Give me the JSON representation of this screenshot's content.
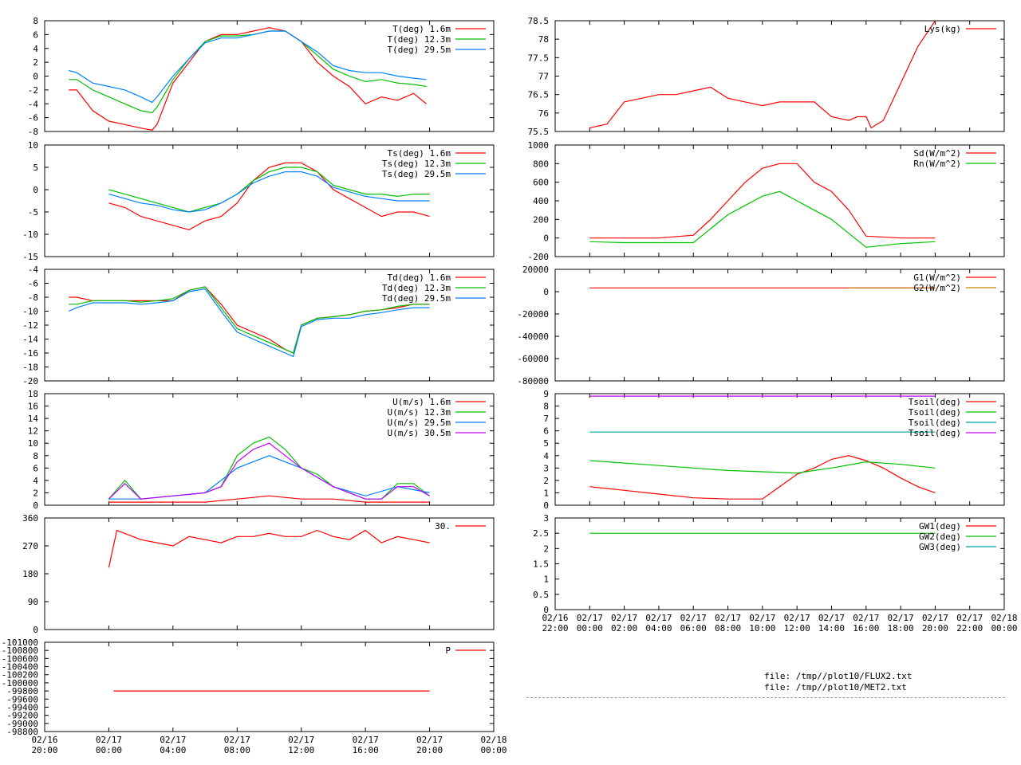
{
  "colors": {
    "red": "#ff0000",
    "green": "#00c000",
    "blue": "#0080ff",
    "magenta": "#c000ff",
    "darkyellow": "#c08000",
    "teal": "#00a0a0",
    "grid": "#a0a0a0"
  },
  "files": [
    "file: /tmp//plot10/FLUX2.txt",
    "file: /tmp//plot10/MET2.txt"
  ],
  "chart_data": [
    {
      "type": "line",
      "yticks": [
        "8",
        "6",
        "4",
        "2",
        "0",
        "-2",
        "-4",
        "-6",
        "-8"
      ],
      "ylim": [
        -8,
        8
      ],
      "series": [
        {
          "name": "T(deg)  1.6m",
          "color": "red",
          "x": [
            1.5,
            2,
            3,
            4,
            5,
            6,
            6.7,
            7,
            8,
            9,
            10,
            11,
            12,
            13,
            14,
            15,
            16,
            17,
            18,
            19,
            20,
            21,
            22,
            23,
            23.8
          ],
          "y": [
            -2,
            -2,
            -5,
            -6.5,
            -7,
            -7.5,
            -7.8,
            -7,
            -1,
            2,
            5,
            6,
            6,
            6.5,
            7,
            6.5,
            5,
            2,
            0,
            -1.5,
            -4,
            -3,
            -3.5,
            -2.5,
            -4
          ]
        },
        {
          "name": "T(deg) 12.3m",
          "color": "green",
          "x": [
            1.5,
            2,
            3,
            4,
            5,
            6,
            6.7,
            7,
            8,
            9,
            10,
            11,
            12,
            13,
            14,
            15,
            16,
            17,
            18,
            19,
            20,
            21,
            22,
            23,
            23.8
          ],
          "y": [
            -0.5,
            -0.5,
            -2,
            -3,
            -4,
            -5,
            -5.3,
            -4.5,
            -0.5,
            2.5,
            5,
            5.8,
            5.8,
            6,
            6.5,
            6.5,
            5,
            3,
            1,
            0,
            -0.8,
            -0.5,
            -1,
            -1.2,
            -1.5
          ]
        },
        {
          "name": "T(deg) 29.5m",
          "color": "blue",
          "x": [
            1.5,
            2,
            3,
            4,
            5,
            6,
            6.7,
            7,
            8,
            9,
            10,
            11,
            12,
            13,
            14,
            15,
            16,
            17,
            18,
            19,
            20,
            21,
            22,
            23,
            23.8
          ],
          "y": [
            0.8,
            0.5,
            -1,
            -1.5,
            -2,
            -3,
            -3.8,
            -3,
            0,
            2.5,
            4.8,
            5.5,
            5.5,
            6,
            6.5,
            6.5,
            5,
            3.5,
            1.5,
            0.8,
            0.5,
            0.5,
            0,
            -0.3,
            -0.5
          ]
        }
      ]
    },
    {
      "type": "line",
      "yticks": [
        "10",
        "5",
        "0",
        "-5",
        "-10",
        "-15"
      ],
      "ylim": [
        -15,
        10
      ],
      "series": [
        {
          "name": "Ts(deg)  1.6m",
          "color": "red",
          "x": [
            4,
            5,
            6,
            7,
            8,
            9,
            10,
            11,
            12,
            13,
            14,
            15,
            16,
            17,
            18,
            19,
            20,
            21,
            22,
            23,
            24
          ],
          "y": [
            -3,
            -4,
            -6,
            -7,
            -8,
            -9,
            -7,
            -6,
            -3,
            2,
            5,
            6,
            6,
            4,
            0,
            -2,
            -4,
            -6,
            -5,
            -5,
            -6
          ]
        },
        {
          "name": "Ts(deg) 12.3m",
          "color": "green",
          "x": [
            4,
            5,
            6,
            7,
            8,
            9,
            10,
            11,
            12,
            13,
            14,
            15,
            16,
            17,
            18,
            19,
            20,
            21,
            22,
            23,
            24
          ],
          "y": [
            0,
            -1,
            -2,
            -3,
            -4,
            -5,
            -4,
            -3,
            -1,
            2,
            4,
            5,
            5,
            4,
            1,
            0,
            -1,
            -1,
            -1.5,
            -1,
            -1
          ]
        },
        {
          "name": "Ts(deg) 29.5m",
          "color": "blue",
          "x": [
            4,
            5,
            6,
            7,
            8,
            9,
            10,
            11,
            12,
            13,
            14,
            15,
            16,
            17,
            18,
            19,
            20,
            21,
            22,
            23,
            24
          ],
          "y": [
            -1,
            -2,
            -3,
            -3.5,
            -4.5,
            -5,
            -4.5,
            -3,
            -1,
            1.5,
            3,
            4,
            4,
            3,
            0.5,
            -0.5,
            -1.5,
            -2,
            -2.5,
            -2.5,
            -2.5
          ]
        }
      ]
    },
    {
      "type": "line",
      "yticks": [
        "-4",
        "-6",
        "-8",
        "-10",
        "-12",
        "-14",
        "-16",
        "-18",
        "-20"
      ],
      "ylim": [
        -20,
        -4
      ],
      "series": [
        {
          "name": "Td(deg)  1.6m",
          "color": "red",
          "x": [
            1.5,
            2,
            3,
            4,
            5,
            6,
            7,
            8,
            9,
            10,
            11,
            12,
            13,
            14,
            15,
            15.5,
            16,
            17,
            18,
            19,
            20,
            21,
            22,
            23,
            24
          ],
          "y": [
            -8,
            -8,
            -8.5,
            -8.5,
            -8.5,
            -8.5,
            -8.5,
            -8.5,
            -7,
            -6.5,
            -9,
            -12,
            -13,
            -14,
            -15.5,
            -16,
            -12,
            -11,
            -10.8,
            -10.5,
            -10,
            -9.8,
            -9.5,
            -9,
            -9
          ]
        },
        {
          "name": "Td(deg) 12.3m",
          "color": "green",
          "x": [
            1.5,
            2,
            3,
            4,
            5,
            6,
            7,
            8,
            9,
            10,
            11,
            12,
            13,
            14,
            15,
            15.5,
            16,
            17,
            18,
            19,
            20,
            21,
            22,
            23,
            24
          ],
          "y": [
            -9,
            -9,
            -8.5,
            -8.5,
            -8.5,
            -8.7,
            -8.5,
            -8.2,
            -7,
            -6.5,
            -9.5,
            -12.5,
            -13.5,
            -14.5,
            -15.5,
            -16,
            -12,
            -11,
            -10.8,
            -10.5,
            -10,
            -9.8,
            -9.3,
            -9,
            -9
          ]
        },
        {
          "name": "Td(deg) 29.5m",
          "color": "blue",
          "x": [
            1.5,
            2,
            3,
            4,
            5,
            6,
            7,
            8,
            9,
            10,
            11,
            12,
            13,
            14,
            15,
            15.5,
            16,
            17,
            18,
            19,
            20,
            21,
            22,
            23,
            24
          ],
          "y": [
            -10,
            -9.5,
            -8.8,
            -8.8,
            -8.8,
            -9,
            -8.8,
            -8.5,
            -7.2,
            -6.8,
            -10,
            -13,
            -14,
            -15,
            -16,
            -16.5,
            -12.2,
            -11.2,
            -11,
            -11,
            -10.5,
            -10.2,
            -9.8,
            -9.5,
            -9.5
          ]
        }
      ]
    },
    {
      "type": "line",
      "yticks": [
        "18",
        "16",
        "14",
        "12",
        "10",
        "8",
        "6",
        "4",
        "2",
        "0"
      ],
      "ylim": [
        0,
        18
      ],
      "series": [
        {
          "name": "U(m/s)  1.6m",
          "color": "red",
          "x": [
            4,
            6,
            8,
            10,
            12,
            14,
            16,
            18,
            20,
            22,
            24
          ],
          "y": [
            0.5,
            0.5,
            0.5,
            0.5,
            1,
            1.5,
            1,
            1,
            0.5,
            0.5,
            0.5
          ]
        },
        {
          "name": "U(m/s) 12.3m",
          "color": "green",
          "x": [
            4,
            5,
            6,
            8,
            10,
            11,
            12,
            13,
            14,
            15,
            16,
            17,
            18,
            19,
            20,
            21,
            22,
            23,
            24
          ],
          "y": [
            1,
            4,
            1,
            1.5,
            2,
            3,
            8,
            10,
            11,
            9,
            6,
            5,
            3,
            2,
            1,
            1,
            3.5,
            3.5,
            1.5
          ]
        },
        {
          "name": "U(m/s) 29.5m",
          "color": "blue",
          "x": [
            4,
            6,
            8,
            10,
            12,
            14,
            16,
            18,
            20,
            22,
            24
          ],
          "y": [
            1,
            1,
            1.5,
            2,
            6,
            8,
            6,
            3,
            1.5,
            3,
            2
          ]
        },
        {
          "name": "U(m/s) 30.5m",
          "color": "magenta",
          "x": [
            4,
            5,
            6,
            8,
            10,
            11,
            12,
            13,
            14,
            15,
            16,
            17,
            18,
            19,
            20,
            21,
            22,
            23,
            24
          ],
          "y": [
            1,
            3.5,
            1,
            1.5,
            2,
            3,
            7,
            9,
            10,
            8,
            6,
            4.5,
            3,
            2,
            1,
            1,
            3,
            3,
            1.5
          ]
        }
      ]
    },
    {
      "type": "line",
      "yticks": [
        "360",
        "270",
        "180",
        "90",
        "0"
      ],
      "ylim": [
        0,
        360
      ],
      "series": [
        {
          "name": "30.",
          "color": "red",
          "x": [
            4,
            4.5,
            5,
            6,
            7,
            8,
            9,
            10,
            11,
            12,
            13,
            14,
            15,
            16,
            17,
            18,
            19,
            20,
            21,
            22,
            23,
            24
          ],
          "y": [
            200,
            320,
            310,
            290,
            280,
            270,
            300,
            290,
            280,
            300,
            300,
            310,
            300,
            300,
            320,
            300,
            290,
            320,
            280,
            300,
            290,
            280
          ]
        }
      ]
    },
    {
      "type": "line",
      "yticks": [
        "-101000",
        "-100800",
        "-100600",
        "-100400",
        "-100200",
        "-100000",
        "-99800",
        "-99600",
        "-99400",
        "-99200",
        "-99000",
        "-98800"
      ],
      "ylim": [
        -101000,
        -98800
      ],
      "xticks": [
        "02/16|20:00",
        "02/17|00:00",
        "02/17|04:00",
        "02/17|08:00",
        "02/17|12:00",
        "02/17|16:00",
        "02/17|20:00",
        "02/18|00:00"
      ],
      "series": [
        {
          "name": "P",
          "color": "red",
          "x": [
            4.3,
            24
          ],
          "y": [
            -100000,
            -100000
          ]
        }
      ]
    },
    {
      "type": "line",
      "yticks": [
        "78.5",
        "78",
        "77.5",
        "77",
        "76.5",
        "76",
        "75.5"
      ],
      "ylim": [
        75.5,
        78.5
      ],
      "series": [
        {
          "name": "Lys(kg)",
          "color": "red",
          "x": [
            4,
            5,
            6,
            7,
            8,
            9,
            10,
            11,
            12,
            13,
            14,
            15,
            16,
            17,
            18,
            19,
            19.5,
            20,
            20.3,
            21,
            22,
            23,
            24
          ],
          "y": [
            75.6,
            75.7,
            76.3,
            76.4,
            76.5,
            76.5,
            76.6,
            76.7,
            76.4,
            76.3,
            76.2,
            76.3,
            76.3,
            76.3,
            75.9,
            75.8,
            75.9,
            75.9,
            75.6,
            75.8,
            76.8,
            77.8,
            78.5
          ]
        }
      ]
    },
    {
      "type": "line",
      "yticks": [
        "1000",
        "800",
        "600",
        "400",
        "200",
        "0",
        "-200"
      ],
      "ylim": [
        -200,
        1000
      ],
      "series": [
        {
          "name": "Sd(W/m^2)",
          "color": "red",
          "x": [
            4,
            6,
            8,
            10,
            11,
            12,
            13,
            14,
            15,
            16,
            17,
            18,
            19,
            20,
            22,
            24
          ],
          "y": [
            0,
            0,
            0,
            30,
            200,
            400,
            600,
            750,
            800,
            800,
            600,
            500,
            300,
            20,
            0,
            0
          ]
        },
        {
          "name": "Rn(W/m^2)",
          "color": "green",
          "x": [
            4,
            6,
            8,
            10,
            11,
            12,
            13,
            14,
            15,
            16,
            17,
            18,
            19,
            20,
            22,
            24
          ],
          "y": [
            -40,
            -50,
            -50,
            -50,
            100,
            250,
            350,
            450,
            500,
            400,
            300,
            200,
            50,
            -100,
            -60,
            -40
          ]
        }
      ]
    },
    {
      "type": "line",
      "yticks": [
        "20000",
        "0",
        "-20000",
        "-40000",
        "-60000",
        "-80000"
      ],
      "ylim": [
        -100000,
        20000
      ],
      "series": [
        {
          "name": "G1(W/m^2)",
          "color": "red",
          "x": [
            4,
            24
          ],
          "y": [
            0,
            0
          ]
        },
        {
          "name": "G2(W/m^2)",
          "color": "darkyellow",
          "x": [
            19,
            24
          ],
          "y": [
            0,
            0
          ]
        }
      ]
    },
    {
      "type": "line",
      "yticks": [
        "9",
        "8",
        "7",
        "6",
        "5",
        "4",
        "3",
        "2",
        "1",
        "0"
      ],
      "ylim": [
        0,
        9
      ],
      "series": [
        {
          "name": "Tsoil(deg)",
          "color": "red",
          "x": [
            4,
            6,
            8,
            10,
            12,
            14,
            15,
            16,
            17,
            18,
            19,
            20,
            21,
            22,
            23,
            24
          ],
          "y": [
            1.5,
            1.2,
            0.9,
            0.6,
            0.5,
            0.5,
            1.5,
            2.5,
            3,
            3.7,
            4,
            3.6,
            3,
            2.2,
            1.5,
            1
          ]
        },
        {
          "name": "Tsoil(deg)",
          "color": "green",
          "x": [
            4,
            8,
            12,
            16,
            18,
            20,
            22,
            24
          ],
          "y": [
            3.6,
            3.2,
            2.8,
            2.6,
            3,
            3.5,
            3.3,
            3
          ]
        },
        {
          "name": "Tsoil(deg)",
          "color": "teal",
          "x": [
            4,
            24
          ],
          "y": [
            5.9,
            5.9
          ]
        },
        {
          "name": "Tsoil(deg)",
          "color": "magenta",
          "x": [
            4,
            24
          ],
          "y": [
            8.8,
            8.8
          ]
        }
      ]
    },
    {
      "type": "line",
      "yticks": [
        "3",
        "2.5",
        "2",
        "1.5",
        "1",
        "0.5",
        "0"
      ],
      "ylim": [
        0,
        3
      ],
      "xticks": [
        "02/16|22:00",
        "02/17|00:00",
        "02/17|02:00",
        "02/17|04:00",
        "02/17|06:00",
        "02/17|08:00",
        "02/17|10:00",
        "02/17|12:00",
        "02/17|14:00",
        "02/17|16:00",
        "02/17|18:00",
        "02/17|20:00",
        "02/17|22:00",
        "02/18|00:00"
      ],
      "series": [
        {
          "name": "GW1(deg)",
          "color": "red",
          "x": [],
          "y": []
        },
        {
          "name": "GW2(deg)",
          "color": "green",
          "x": [
            4,
            24
          ],
          "y": [
            2.5,
            2.5
          ]
        },
        {
          "name": "GW3(deg)",
          "color": "teal",
          "x": [],
          "y": []
        }
      ]
    }
  ]
}
